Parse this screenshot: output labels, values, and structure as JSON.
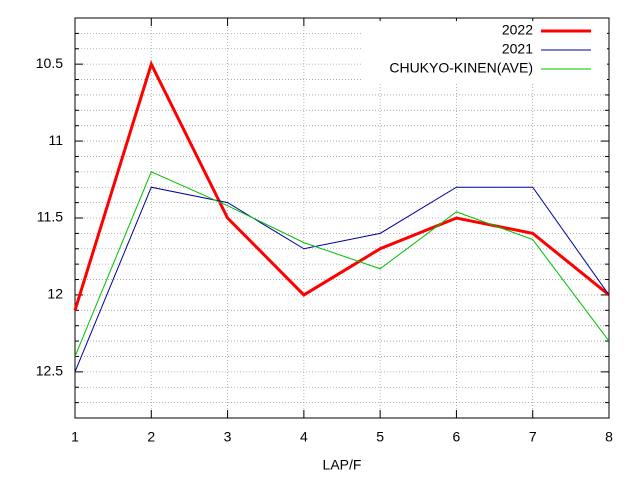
{
  "chart_data": {
    "type": "line",
    "xlabel": "LAP/F",
    "x": [
      1,
      2,
      3,
      4,
      5,
      6,
      7,
      8
    ],
    "series": [
      {
        "name": "2022",
        "color": "#ff0000",
        "width": 3,
        "values": [
          12.1,
          10.5,
          11.5,
          12.0,
          11.7,
          11.5,
          11.6,
          12.0
        ]
      },
      {
        "name": "2021",
        "color": "#0000a0",
        "width": 1,
        "values": [
          12.5,
          11.3,
          11.4,
          11.7,
          11.6,
          11.3,
          11.3,
          12.0
        ]
      },
      {
        "name": "CHUKYO-KINEN(AVE)",
        "color": "#00c000",
        "width": 1,
        "values": [
          12.4,
          11.2,
          11.42,
          11.66,
          11.83,
          11.46,
          11.64,
          12.3
        ]
      }
    ],
    "xlim": [
      1,
      8
    ],
    "xticks": [
      1,
      2,
      3,
      4,
      5,
      6,
      7,
      8
    ],
    "ylim": [
      12.8,
      10.2
    ],
    "yticks": [
      10.5,
      11,
      11.5,
      12,
      12.5
    ],
    "grid": true,
    "minor_grid": true,
    "legend": "top-right"
  }
}
